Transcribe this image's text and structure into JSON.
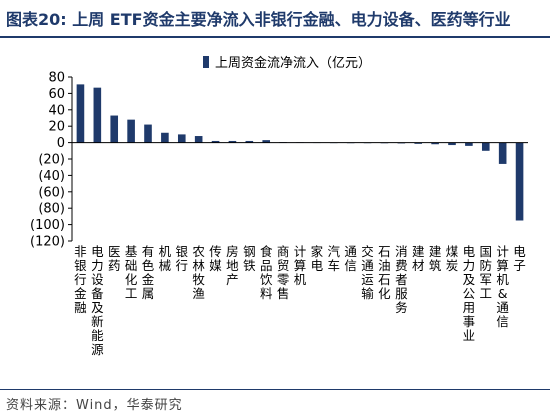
{
  "header": {
    "title": "图表20:  上周 ETF资金主要净流入非银行金融、电力设备、医药等行业"
  },
  "footer": {
    "source": "资料来源：Wind，华泰研究"
  },
  "colors": {
    "accent": "#1f3a6b",
    "bar": "#1f3a6b"
  },
  "chart_data": {
    "type": "bar",
    "legend": {
      "entries": [
        "上周资金流净流入（亿元）"
      ],
      "placement": "top-center"
    },
    "ylim": [
      -120,
      80
    ],
    "yticks": [
      "80",
      "60",
      "40",
      "20",
      "0",
      "(20)",
      "(40)",
      "(60)",
      "(80)",
      "(100)",
      "(120)"
    ],
    "ytick_values": [
      80,
      60,
      40,
      20,
      0,
      -20,
      -40,
      -60,
      -80,
      -100,
      -120
    ],
    "grid": false,
    "categories": [
      "非银行金融",
      "电力设备及新能源",
      "医药",
      "基础化工",
      "有色金属",
      "机械",
      "银行",
      "农林牧渔",
      "传媒",
      "房地产",
      "钢铁",
      "食品饮料",
      "商贸零售",
      "计算机",
      "家电",
      "汽车",
      "通信",
      "交通运输",
      "石油石化",
      "消费者服务",
      "建材",
      "建筑",
      "煤炭",
      "电力及公用事业",
      "国防军工",
      "计算机&通信",
      "电子"
    ],
    "series": [
      {
        "name": "上周资金流净流入（亿元）",
        "values": [
          71,
          67,
          33,
          28,
          22,
          12,
          10,
          8,
          2,
          2,
          2,
          3,
          0.5,
          0.3,
          0.2,
          0.1,
          -0.3,
          -0.5,
          -0.8,
          -1,
          -1.5,
          -2,
          -3,
          -4,
          -10,
          -26,
          -95
        ]
      }
    ]
  }
}
